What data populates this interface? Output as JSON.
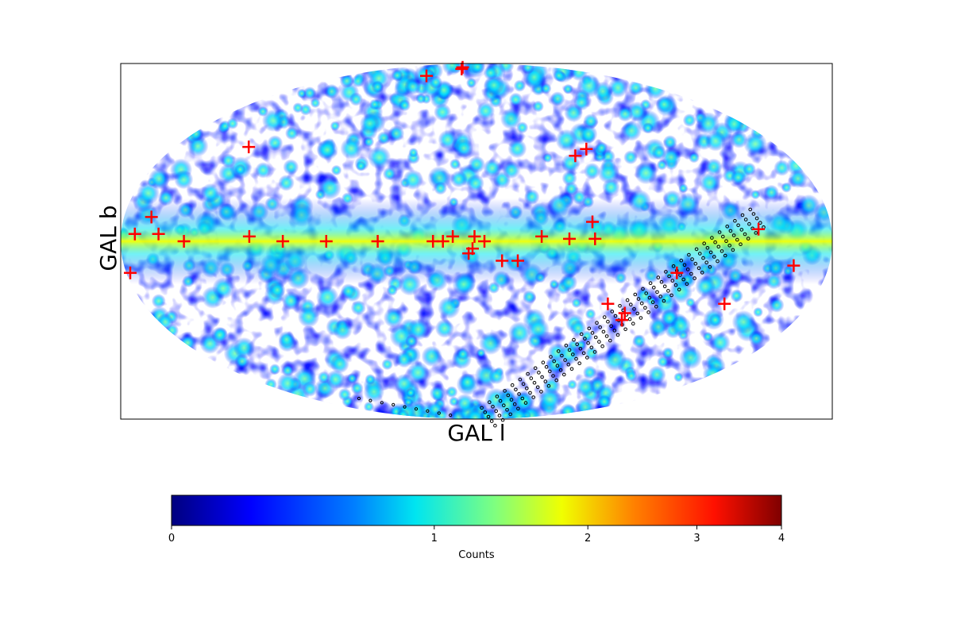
{
  "chart_data": [
    {
      "type": "heatmap",
      "projection": "mollweide",
      "coordinate_system": "galactic",
      "xlabel": "GAL l",
      "ylabel": "GAL b",
      "colormap": "jet",
      "scale": "log",
      "grid": false,
      "map_description": "all-sky count map; enhanced emission along the galactic plane (b≈0), clumpy source distribution at higher latitudes",
      "point_sources": {
        "marker": "plus",
        "color": "#ff0000",
        "positions": [
          [
            -30.5,
            83.5
          ],
          [
            -34,
            85
          ],
          [
            -69,
            78
          ],
          [
            -136,
            40
          ],
          [
            65,
            39
          ],
          [
            57,
            36
          ],
          [
            143,
            5
          ],
          [
            162,
            -10
          ],
          [
            -166,
            10
          ],
          [
            -178,
            -13
          ],
          [
            -161,
            3
          ],
          [
            82,
            -33
          ],
          [
            -173,
            3
          ],
          [
            -148,
            0
          ],
          [
            -115,
            2
          ],
          [
            -98,
            0
          ],
          [
            -76,
            0
          ],
          [
            -50,
            0
          ],
          [
            -22,
            0
          ],
          [
            -17,
            0
          ],
          [
            -4,
            -5
          ],
          [
            -2,
            -3
          ],
          [
            -1,
            2
          ],
          [
            21,
            -8
          ],
          [
            13,
            -8
          ],
          [
            -12,
            2
          ],
          [
            4,
            0
          ],
          [
            33,
            2
          ],
          [
            47,
            1
          ],
          [
            60,
            1
          ],
          [
            59,
            8
          ],
          [
            103,
            -13
          ],
          [
            71,
            -26
          ],
          [
            134,
            -26
          ],
          [
            82,
            -30
          ]
        ]
      },
      "scan_track": {
        "marker": "circle-outline",
        "color": "#000000",
        "description": "diagonal band of small open circles crossing from the lower middle toward the right edge"
      }
    },
    {
      "type": "colorbar",
      "label": "Counts",
      "colormap": "jet",
      "scale": "log",
      "ticks": [
        {
          "value": 0,
          "label": "0"
        },
        {
          "value": 1,
          "label": "1"
        },
        {
          "value": 2,
          "label": "2"
        },
        {
          "value": 3,
          "label": "3"
        },
        {
          "value": 4,
          "label": "4"
        }
      ],
      "range": [
        0,
        4
      ]
    }
  ],
  "colors": {
    "jet": [
      "#00007f",
      "#0000ff",
      "#007fff",
      "#00e5f0",
      "#7fff7f",
      "#f0ff00",
      "#ff7f00",
      "#ff1000",
      "#7f0000"
    ],
    "marker": "#ff0000"
  }
}
